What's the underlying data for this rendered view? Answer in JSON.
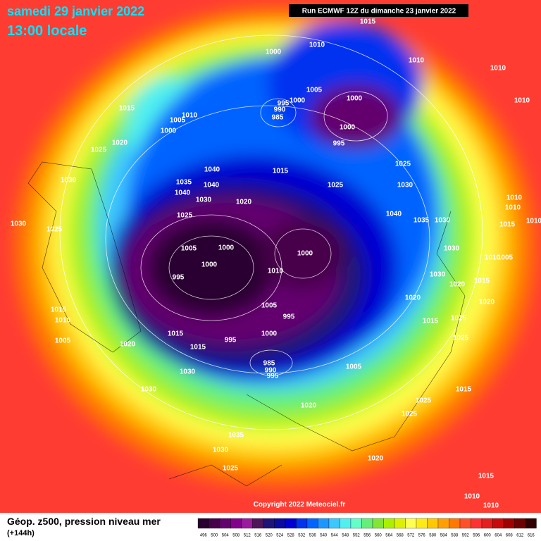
{
  "header": {
    "title": "samedi 29 janvier 2022",
    "time": "13:00 locale",
    "run": "Run ECMWF 12Z du dimanche 23 janvier 2022"
  },
  "footer": {
    "field": "Géop. z500, pression niveau mer",
    "lead": "(+144h)",
    "copyright": "Copyright 2022 Meteociel.fr"
  },
  "colorbar": [
    {
      "label": 496,
      "color": "#2a0030"
    },
    {
      "label": 500,
      "color": "#46004a"
    },
    {
      "label": 504,
      "color": "#64006e"
    },
    {
      "label": 508,
      "color": "#82008c"
    },
    {
      "label": 512,
      "color": "#9b1aa0"
    },
    {
      "label": 516,
      "color": "#50145a"
    },
    {
      "label": 520,
      "color": "#1e1478"
    },
    {
      "label": 524,
      "color": "#0a0aa0"
    },
    {
      "label": 528,
      "color": "#0000d2"
    },
    {
      "label": 532,
      "color": "#0032f0"
    },
    {
      "label": 536,
      "color": "#0064ff"
    },
    {
      "label": 540,
      "color": "#1e96ff"
    },
    {
      "label": 544,
      "color": "#3cc8ff"
    },
    {
      "label": 548,
      "color": "#50f0f0"
    },
    {
      "label": 552,
      "color": "#64ffc8"
    },
    {
      "label": 556,
      "color": "#64f078"
    },
    {
      "label": 560,
      "color": "#82e632"
    },
    {
      "label": 564,
      "color": "#aaf000"
    },
    {
      "label": 568,
      "color": "#dcf000"
    },
    {
      "label": 572,
      "color": "#ffff50"
    },
    {
      "label": 576,
      "color": "#ffeb14"
    },
    {
      "label": 580,
      "color": "#ffc800"
    },
    {
      "label": 584,
      "color": "#ffa000"
    },
    {
      "label": 588,
      "color": "#ff7800"
    },
    {
      "label": 592,
      "color": "#ff5028"
    },
    {
      "label": 596,
      "color": "#ff3232"
    },
    {
      "label": 600,
      "color": "#e61e1e"
    },
    {
      "label": 604,
      "color": "#c80a0a"
    },
    {
      "label": 608,
      "color": "#a00000"
    },
    {
      "label": 612,
      "color": "#6e0000"
    },
    {
      "label": 616,
      "color": "#320000"
    }
  ],
  "isobars": [
    1015,
    1010,
    1000,
    1010,
    1010,
    1010,
    1005,
    1000,
    1000,
    995,
    990,
    985,
    1000,
    995,
    1015,
    1010,
    1005,
    1000,
    1020,
    1025,
    1040,
    1035,
    1040,
    1040,
    1030,
    1020,
    1015,
    1025,
    1025,
    1030,
    1040,
    1035,
    1030,
    1030,
    1025,
    1030,
    1025,
    1005,
    1000,
    1000,
    1000,
    995,
    1010,
    1030,
    1010,
    1005,
    1030,
    1020,
    1015,
    1020,
    1020,
    1005,
    995,
    1015,
    1010,
    1015,
    1025,
    1000,
    1015,
    995,
    1015,
    1025,
    1005,
    1020,
    985,
    990,
    995,
    1005,
    1030,
    1030,
    1015,
    1025,
    1020,
    1025,
    1035,
    1030,
    1020,
    1025,
    1015,
    1010,
    1010,
    1010,
    1010,
    1015,
    1010
  ]
}
